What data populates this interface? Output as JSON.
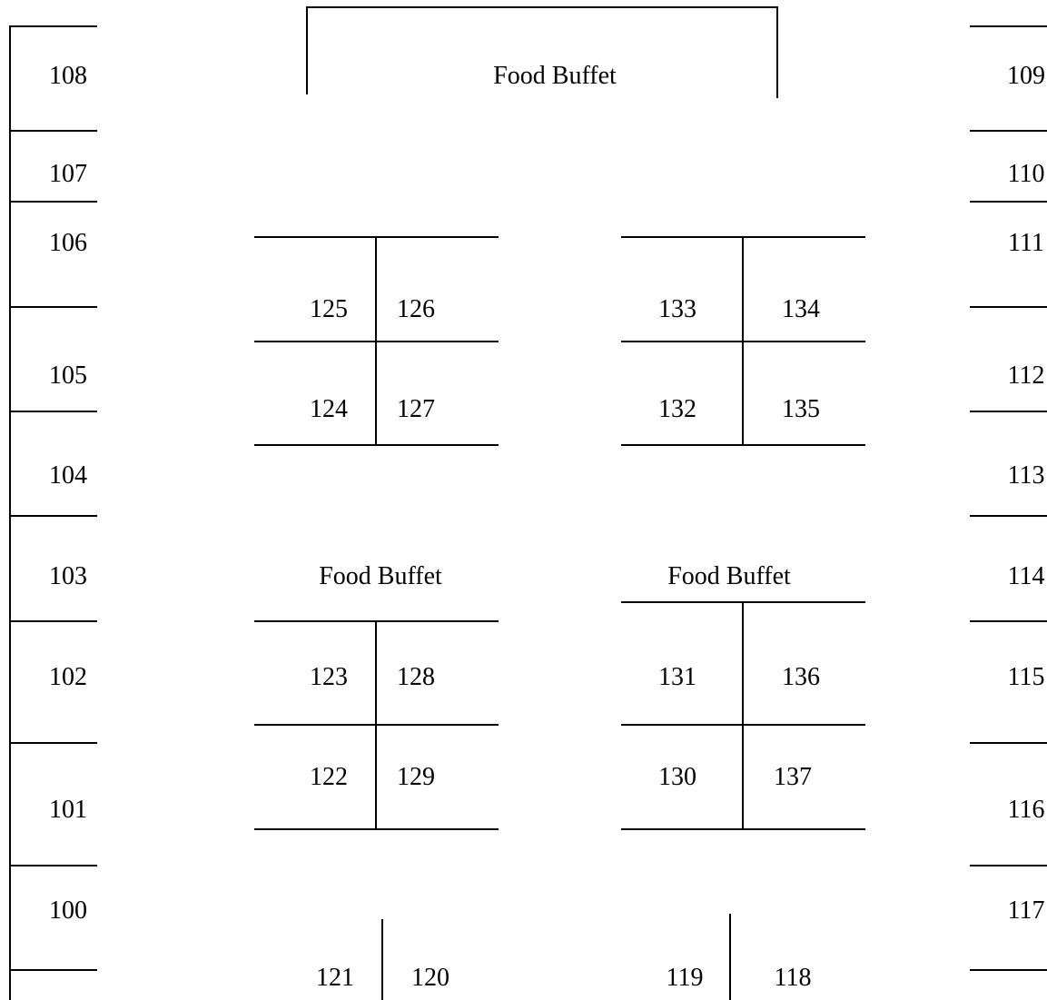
{
  "left_booths": [
    "108",
    "107",
    "106",
    "105",
    "104",
    "103",
    "102",
    "101",
    "100"
  ],
  "right_booths": [
    "109",
    "110",
    "111",
    "112",
    "113",
    "114",
    "115",
    "116",
    "117"
  ],
  "buffets": {
    "top": "Food Buffet",
    "middle_left": "Food Buffet",
    "middle_right": "Food Buffet"
  },
  "blocks": {
    "upper_left": {
      "top_left": "125",
      "top_right": "126",
      "bottom_left": "124",
      "bottom_right": "127"
    },
    "upper_right": {
      "top_left": "133",
      "top_right": "134",
      "bottom_left": "132",
      "bottom_right": "135"
    },
    "lower_left": {
      "top_left": "123",
      "top_right": "128",
      "bottom_left": "122",
      "bottom_right": "129"
    },
    "lower_right": {
      "top_left": "131",
      "top_right": "136",
      "bottom_left": "130",
      "bottom_right": "137"
    }
  },
  "bottom_pairs": {
    "left": {
      "left": "121",
      "right": "120"
    },
    "right": {
      "left": "119",
      "right": "118"
    }
  }
}
